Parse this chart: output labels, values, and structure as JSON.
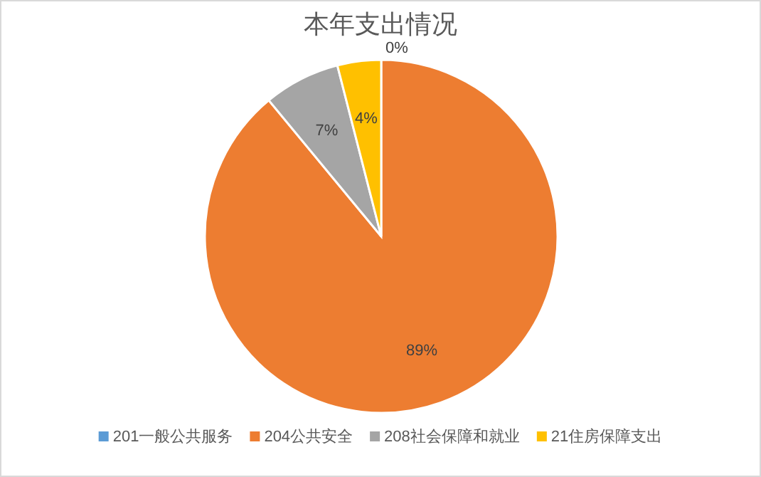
{
  "chart_data": {
    "type": "pie",
    "title": "本年支出情况",
    "categories": [
      "201一般公共服务",
      "204公共安全",
      "208社会保障和就业",
      "21住房保障支出"
    ],
    "values": [
      0,
      89,
      7,
      4
    ],
    "colors": [
      "#5b9bd5",
      "#ed7d31",
      "#a5a5a5",
      "#ffc000"
    ],
    "value_labels": [
      "0%",
      "89%",
      "7%",
      "4%"
    ],
    "legend": "bottom"
  }
}
